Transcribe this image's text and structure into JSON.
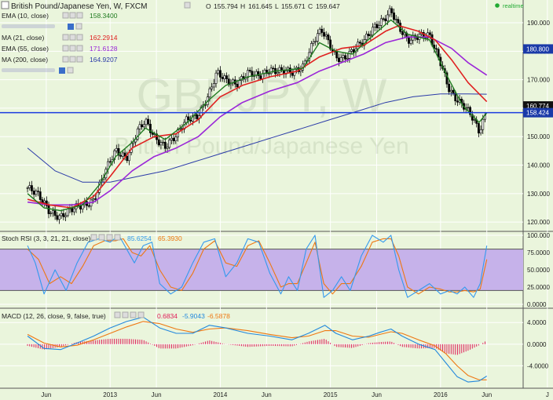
{
  "header": {
    "title": "British Pound/Japanese Yen, W, FXCM",
    "ohlc": {
      "o_label": "O",
      "o": "155.794",
      "h_label": "H",
      "h": "161.645",
      "l_label": "L",
      "l": "155.671",
      "c_label": "C",
      "c": "159.647"
    },
    "realtime": "realtime",
    "realtime_color": "#22aa33"
  },
  "watermark": {
    "line1": "GBPJPY, W",
    "line2": "British Pound/Japanese Yen"
  },
  "legends": [
    {
      "label": "EMA (10, close)",
      "value": "158.3400",
      "color": "#1f7a1f"
    },
    {
      "label": "",
      "value": "",
      "color": "#9999cc"
    },
    {
      "label": "MA (21, close)",
      "value": "162.2914",
      "color": "#e02020"
    },
    {
      "label": "EMA (55, close)",
      "value": "171.6128",
      "color": "#9b27d8"
    },
    {
      "label": "MA (200, close)",
      "value": "164.9207",
      "color": "#2a3aa8"
    },
    {
      "label": "",
      "value": "",
      "color": "#9999cc"
    }
  ],
  "rsi_legend": {
    "label": "Stoch RSI (3, 3, 21, 21, close)",
    "k": "85.6254",
    "d": "65.3930",
    "k_color": "#3399ee",
    "d_color": "#ee7711"
  },
  "macd_legend": {
    "label": "MACD (12, 26, close, 9, false, true)",
    "hist": "0.6834",
    "macd": "-5.9043",
    "signal": "-6.5878",
    "hist_color": "#e0205a",
    "macd_color": "#2288dd",
    "signal_color": "#ee7711"
  },
  "price_tags": [
    {
      "value": "180.800",
      "color": "#1a3aa8"
    },
    {
      "value": "160.774",
      "color": "#111111"
    },
    {
      "value": "158.424",
      "color": "#1a3aa8"
    }
  ],
  "chart_data": {
    "type": "candlestick",
    "x_ticks": [
      "Jun",
      "2013",
      "Jun",
      "2014",
      "Jun",
      "2015",
      "Jun",
      "2016",
      "Jun",
      "J"
    ],
    "price_axis": {
      "ylim": [
        117,
        198
      ],
      "ticks": [
        "190.000",
        "180.000",
        "170.000",
        "160.000",
        "150.000",
        "140.000",
        "130.000",
        "120.000"
      ],
      "tick_values": [
        190,
        180,
        170,
        160,
        150,
        140,
        130,
        120
      ]
    },
    "horizontal_line": 158.424,
    "rsi_axis": {
      "ylim": [
        0,
        100
      ],
      "ticks": [
        "100.000",
        "75.0000",
        "50.0000",
        "25.0000",
        "0.0000"
      ],
      "tick_values": [
        100,
        75,
        50,
        25,
        0
      ],
      "band": [
        20,
        80
      ],
      "band_color": "#c6b2ea"
    },
    "macd_axis": {
      "ylim": [
        -8,
        6.5
      ],
      "ticks": [
        "4.0000",
        "0.0000",
        "-4.0000"
      ],
      "tick_values": [
        4,
        0,
        -4
      ]
    },
    "series": {
      "price_close": [
        [
          2012.25,
          132
        ],
        [
          2012.35,
          129
        ],
        [
          2012.45,
          124
        ],
        [
          2012.55,
          122
        ],
        [
          2012.65,
          124
        ],
        [
          2012.75,
          126
        ],
        [
          2012.85,
          128
        ],
        [
          2012.95,
          137
        ],
        [
          2013.05,
          145
        ],
        [
          2013.15,
          143
        ],
        [
          2013.25,
          152
        ],
        [
          2013.32,
          155
        ],
        [
          2013.4,
          150
        ],
        [
          2013.5,
          147
        ],
        [
          2013.6,
          150
        ],
        [
          2013.7,
          156
        ],
        [
          2013.8,
          158
        ],
        [
          2013.9,
          165
        ],
        [
          2013.97,
          172
        ],
        [
          2014.05,
          170
        ],
        [
          2014.15,
          169
        ],
        [
          2014.25,
          172
        ],
        [
          2014.35,
          171
        ],
        [
          2014.45,
          174
        ],
        [
          2014.55,
          173
        ],
        [
          2014.65,
          172
        ],
        [
          2014.75,
          175
        ],
        [
          2014.85,
          184
        ],
        [
          2014.92,
          187
        ],
        [
          2014.98,
          183
        ],
        [
          2015.05,
          178
        ],
        [
          2015.12,
          178
        ],
        [
          2015.2,
          180
        ],
        [
          2015.3,
          183
        ],
        [
          2015.4,
          189
        ],
        [
          2015.5,
          192
        ],
        [
          2015.55,
          194
        ],
        [
          2015.62,
          188
        ],
        [
          2015.7,
          184
        ],
        [
          2015.8,
          186
        ],
        [
          2015.9,
          185
        ],
        [
          2015.95,
          180
        ],
        [
          2016.0,
          176
        ],
        [
          2016.08,
          167
        ],
        [
          2016.15,
          163
        ],
        [
          2016.22,
          160
        ],
        [
          2016.28,
          157
        ],
        [
          2016.35,
          152
        ],
        [
          2016.38,
          155
        ],
        [
          2016.42,
          159.6
        ]
      ],
      "ema10": [
        [
          2012.25,
          130
        ],
        [
          2012.4,
          125
        ],
        [
          2012.55,
          124
        ],
        [
          2012.75,
          126
        ],
        [
          2012.9,
          133
        ],
        [
          2013.05,
          143
        ],
        [
          2013.2,
          148
        ],
        [
          2013.32,
          153
        ],
        [
          2013.5,
          149
        ],
        [
          2013.7,
          155
        ],
        [
          2013.9,
          163
        ],
        [
          2014.05,
          168
        ],
        [
          2014.25,
          171
        ],
        [
          2014.5,
          173
        ],
        [
          2014.75,
          174
        ],
        [
          2014.9,
          183
        ],
        [
          2015.05,
          180
        ],
        [
          2015.2,
          179
        ],
        [
          2015.4,
          186
        ],
        [
          2015.55,
          191
        ],
        [
          2015.7,
          186
        ],
        [
          2015.9,
          184
        ],
        [
          2016.05,
          172
        ],
        [
          2016.2,
          161
        ],
        [
          2016.35,
          155
        ],
        [
          2016.42,
          158.3
        ]
      ],
      "ma21": [
        [
          2012.25,
          128
        ],
        [
          2012.45,
          126
        ],
        [
          2012.65,
          125
        ],
        [
          2012.85,
          129
        ],
        [
          2013.0,
          136
        ],
        [
          2013.2,
          146
        ],
        [
          2013.4,
          150
        ],
        [
          2013.6,
          151
        ],
        [
          2013.8,
          156
        ],
        [
          2014.0,
          164
        ],
        [
          2014.2,
          168
        ],
        [
          2014.45,
          171
        ],
        [
          2014.7,
          173
        ],
        [
          2014.9,
          178
        ],
        [
          2015.1,
          181
        ],
        [
          2015.3,
          182
        ],
        [
          2015.5,
          187
        ],
        [
          2015.62,
          189
        ],
        [
          2015.8,
          187
        ],
        [
          2015.95,
          184
        ],
        [
          2016.1,
          177
        ],
        [
          2016.25,
          169
        ],
        [
          2016.42,
          162.3
        ]
      ],
      "ema55": [
        [
          2012.25,
          127
        ],
        [
          2012.45,
          126
        ],
        [
          2012.65,
          126
        ],
        [
          2012.85,
          127
        ],
        [
          2013.0,
          131
        ],
        [
          2013.2,
          138
        ],
        [
          2013.4,
          143
        ],
        [
          2013.6,
          146
        ],
        [
          2013.8,
          150
        ],
        [
          2014.0,
          157
        ],
        [
          2014.2,
          162
        ],
        [
          2014.45,
          166
        ],
        [
          2014.7,
          169
        ],
        [
          2014.9,
          173
        ],
        [
          2015.1,
          176
        ],
        [
          2015.3,
          179
        ],
        [
          2015.5,
          183
        ],
        [
          2015.7,
          185
        ],
        [
          2015.9,
          185
        ],
        [
          2016.1,
          181
        ],
        [
          2016.25,
          176
        ],
        [
          2016.42,
          171.6
        ]
      ],
      "ma200": [
        [
          2012.25,
          146
        ],
        [
          2012.5,
          138
        ],
        [
          2012.75,
          134
        ],
        [
          2013.0,
          134
        ],
        [
          2013.25,
          136
        ],
        [
          2013.5,
          138
        ],
        [
          2013.75,
          141
        ],
        [
          2014.0,
          144
        ],
        [
          2014.25,
          147
        ],
        [
          2014.5,
          150
        ],
        [
          2014.75,
          153
        ],
        [
          2015.0,
          156
        ],
        [
          2015.25,
          159
        ],
        [
          2015.5,
          162
        ],
        [
          2015.75,
          164
        ],
        [
          2016.0,
          165
        ],
        [
          2016.25,
          165
        ],
        [
          2016.42,
          164.9
        ]
      ],
      "stoch_k": [
        [
          2012.25,
          85
        ],
        [
          2012.32,
          60
        ],
        [
          2012.4,
          15
        ],
        [
          2012.5,
          50
        ],
        [
          2012.6,
          20
        ],
        [
          2012.7,
          60
        ],
        [
          2012.8,
          90
        ],
        [
          2012.9,
          95
        ],
        [
          2013.0,
          90
        ],
        [
          2013.08,
          100
        ],
        [
          2013.15,
          80
        ],
        [
          2013.22,
          60
        ],
        [
          2013.3,
          85
        ],
        [
          2013.38,
          90
        ],
        [
          2013.45,
          30
        ],
        [
          2013.55,
          15
        ],
        [
          2013.65,
          25
        ],
        [
          2013.75,
          60
        ],
        [
          2013.85,
          90
        ],
        [
          2013.95,
          95
        ],
        [
          2014.05,
          40
        ],
        [
          2014.15,
          60
        ],
        [
          2014.25,
          95
        ],
        [
          2014.35,
          90
        ],
        [
          2014.45,
          45
        ],
        [
          2014.55,
          15
        ],
        [
          2014.62,
          40
        ],
        [
          2014.7,
          20
        ],
        [
          2014.78,
          80
        ],
        [
          2014.86,
          100
        ],
        [
          2014.94,
          10
        ],
        [
          2015.02,
          20
        ],
        [
          2015.1,
          40
        ],
        [
          2015.18,
          20
        ],
        [
          2015.28,
          70
        ],
        [
          2015.38,
          100
        ],
        [
          2015.48,
          90
        ],
        [
          2015.55,
          100
        ],
        [
          2015.62,
          50
        ],
        [
          2015.7,
          10
        ],
        [
          2015.8,
          20
        ],
        [
          2015.9,
          30
        ],
        [
          2016.0,
          15
        ],
        [
          2016.08,
          20
        ],
        [
          2016.15,
          15
        ],
        [
          2016.22,
          25
        ],
        [
          2016.3,
          10
        ],
        [
          2016.36,
          30
        ],
        [
          2016.42,
          85
        ]
      ],
      "stoch_d": [
        [
          2012.25,
          80
        ],
        [
          2012.35,
          65
        ],
        [
          2012.45,
          30
        ],
        [
          2012.55,
          40
        ],
        [
          2012.65,
          30
        ],
        [
          2012.75,
          55
        ],
        [
          2012.85,
          85
        ],
        [
          2012.95,
          92
        ],
        [
          2013.05,
          92
        ],
        [
          2013.12,
          95
        ],
        [
          2013.2,
          75
        ],
        [
          2013.28,
          70
        ],
        [
          2013.36,
          85
        ],
        [
          2013.45,
          50
        ],
        [
          2013.55,
          25
        ],
        [
          2013.65,
          20
        ],
        [
          2013.75,
          45
        ],
        [
          2013.85,
          80
        ],
        [
          2013.95,
          92
        ],
        [
          2014.05,
          60
        ],
        [
          2014.15,
          55
        ],
        [
          2014.25,
          85
        ],
        [
          2014.35,
          92
        ],
        [
          2014.45,
          60
        ],
        [
          2014.55,
          25
        ],
        [
          2014.62,
          30
        ],
        [
          2014.7,
          30
        ],
        [
          2014.78,
          60
        ],
        [
          2014.86,
          90
        ],
        [
          2014.94,
          30
        ],
        [
          2015.02,
          15
        ],
        [
          2015.1,
          30
        ],
        [
          2015.18,
          30
        ],
        [
          2015.28,
          55
        ],
        [
          2015.38,
          90
        ],
        [
          2015.48,
          95
        ],
        [
          2015.55,
          95
        ],
        [
          2015.62,
          70
        ],
        [
          2015.7,
          25
        ],
        [
          2015.8,
          15
        ],
        [
          2015.9,
          25
        ],
        [
          2016.0,
          22
        ],
        [
          2016.08,
          18
        ],
        [
          2016.15,
          18
        ],
        [
          2016.22,
          20
        ],
        [
          2016.3,
          18
        ],
        [
          2016.36,
          22
        ],
        [
          2016.42,
          65
        ]
      ],
      "macd": [
        [
          2012.25,
          1.5
        ],
        [
          2012.4,
          -0.8
        ],
        [
          2012.55,
          -1.0
        ],
        [
          2012.7,
          0.2
        ],
        [
          2012.85,
          1.5
        ],
        [
          2013.0,
          3.0
        ],
        [
          2013.15,
          4.2
        ],
        [
          2013.3,
          5.0
        ],
        [
          2013.45,
          3.0
        ],
        [
          2013.6,
          2.0
        ],
        [
          2013.75,
          2.0
        ],
        [
          2013.9,
          3.5
        ],
        [
          2014.05,
          3.0
        ],
        [
          2014.25,
          2.0
        ],
        [
          2014.45,
          1.5
        ],
        [
          2014.65,
          0.8
        ],
        [
          2014.8,
          2.0
        ],
        [
          2014.95,
          3.5
        ],
        [
          2015.05,
          2.0
        ],
        [
          2015.2,
          0.8
        ],
        [
          2015.35,
          1.5
        ],
        [
          2015.45,
          2.2
        ],
        [
          2015.55,
          2.8
        ],
        [
          2015.65,
          1.5
        ],
        [
          2015.8,
          0.0
        ],
        [
          2015.95,
          -1.0
        ],
        [
          2016.05,
          -3.5
        ],
        [
          2016.15,
          -6.0
        ],
        [
          2016.25,
          -7.0
        ],
        [
          2016.35,
          -6.8
        ],
        [
          2016.42,
          -5.9
        ]
      ],
      "signal": [
        [
          2012.25,
          1.8
        ],
        [
          2012.4,
          0.2
        ],
        [
          2012.55,
          -0.5
        ],
        [
          2012.7,
          -0.2
        ],
        [
          2012.85,
          0.8
        ],
        [
          2013.0,
          2.0
        ],
        [
          2013.15,
          3.2
        ],
        [
          2013.3,
          4.2
        ],
        [
          2013.45,
          3.8
        ],
        [
          2013.6,
          2.8
        ],
        [
          2013.75,
          2.2
        ],
        [
          2013.9,
          2.8
        ],
        [
          2014.05,
          3.0
        ],
        [
          2014.25,
          2.5
        ],
        [
          2014.45,
          1.8
        ],
        [
          2014.65,
          1.2
        ],
        [
          2014.8,
          1.5
        ],
        [
          2014.95,
          2.5
        ],
        [
          2015.05,
          2.5
        ],
        [
          2015.2,
          1.5
        ],
        [
          2015.35,
          1.3
        ],
        [
          2015.45,
          1.8
        ],
        [
          2015.55,
          2.3
        ],
        [
          2015.65,
          2.0
        ],
        [
          2015.8,
          0.8
        ],
        [
          2015.95,
          -0.3
        ],
        [
          2016.05,
          -1.8
        ],
        [
          2016.15,
          -4.0
        ],
        [
          2016.25,
          -5.8
        ],
        [
          2016.35,
          -6.6
        ],
        [
          2016.42,
          -6.6
        ]
      ]
    }
  }
}
